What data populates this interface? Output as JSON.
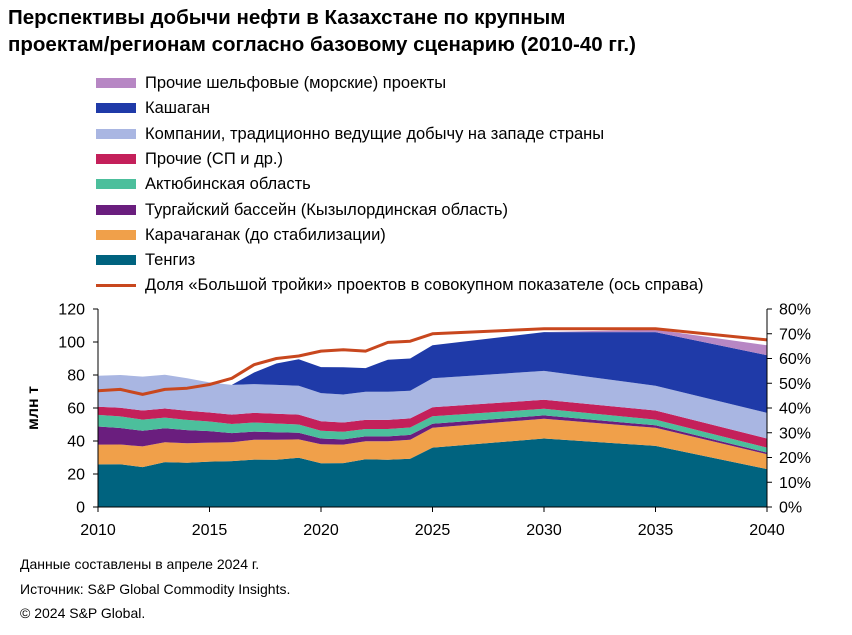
{
  "chart_data": {
    "type": "area",
    "title_lines": [
      "Перспективы добычи нефти в Казахстане по крупным",
      "проектам/регионам согласно базовому сценарию (2010-40 гг.)"
    ],
    "xlabel": "",
    "ylabel": "млн т",
    "ylabel_right": "",
    "x": [
      2010,
      2011,
      2012,
      2013,
      2014,
      2015,
      2016,
      2017,
      2018,
      2019,
      2020,
      2021,
      2022,
      2023,
      2024,
      2025,
      2030,
      2035,
      2040
    ],
    "xticks": [
      "2010",
      "2015",
      "2020",
      "2025",
      "2030",
      "2035",
      "2040"
    ],
    "xlim": [
      2010,
      2040
    ],
    "ylim": [
      0,
      120
    ],
    "yticks": [
      "0",
      "20",
      "40",
      "60",
      "80",
      "100",
      "120"
    ],
    "ylim_right": [
      0,
      80
    ],
    "yticks_right": [
      "0%",
      "10%",
      "20%",
      "30%",
      "40%",
      "50%",
      "60%",
      "70%",
      "80%"
    ],
    "stacking": "stacked",
    "series": [
      {
        "name": "Тенгиз",
        "color": "#00637f",
        "values": [
          25.8,
          25.9,
          24.2,
          27.2,
          26.8,
          27.5,
          27.8,
          28.7,
          28.6,
          29.8,
          26.5,
          26.6,
          28.9,
          28.6,
          29.2,
          36,
          41.5,
          37,
          23
        ]
      },
      {
        "name": "Карачаганак (до стабилизации)",
        "color": "#f0a04a",
        "values": [
          12,
          12,
          12.5,
          12,
          11.8,
          11.5,
          11.5,
          12,
          12.2,
          11.2,
          11.5,
          11.2,
          10.9,
          11.2,
          11.5,
          12,
          12,
          11,
          9
        ]
      },
      {
        "name": "Тургайский бассейн (Кызылординская область)",
        "color": "#6a1e7e",
        "values": [
          11,
          10,
          9.5,
          8.5,
          8,
          7,
          5.5,
          5,
          4.5,
          4,
          3.5,
          3.2,
          3,
          3,
          3,
          2.5,
          2,
          1.5,
          1
        ]
      },
      {
        "name": "Актюбинская область",
        "color": "#4cbf9c",
        "values": [
          7,
          7,
          6.8,
          6.5,
          6.2,
          5.8,
          5.5,
          5.5,
          5.3,
          5,
          4.7,
          4.6,
          4.5,
          4.5,
          4.5,
          4.5,
          4,
          3.5,
          3
        ]
      },
      {
        "name": "Прочие (СП и др.)",
        "color": "#c4205a",
        "values": [
          5,
          5.2,
          5.5,
          5.5,
          5.5,
          5.5,
          5.7,
          5.8,
          5.9,
          6,
          5.8,
          5.6,
          5.5,
          5.5,
          5.5,
          5.5,
          5.5,
          5.5,
          5.5
        ]
      },
      {
        "name": "Компании, традиционно ведущие добычу на западе страны",
        "color": "#a9b6e2",
        "values": [
          18.7,
          19.9,
          20.5,
          20.5,
          19.7,
          18.2,
          18,
          17.5,
          17.5,
          17.5,
          17,
          17,
          17,
          17,
          16.8,
          17.5,
          17.5,
          15,
          15.5
        ]
      },
      {
        "name": "Кашаган",
        "color": "#1f3aa8",
        "values": [
          0,
          0,
          0,
          0,
          0,
          0,
          0,
          7,
          13,
          16,
          15.8,
          16.5,
          14.4,
          19.5,
          19.5,
          20,
          23.5,
          32.5,
          35
        ]
      },
      {
        "name": "Прочие шельфовые (морские) проекты",
        "color": "#b787c4",
        "values": [
          0,
          0,
          0,
          0,
          0,
          0,
          0,
          0,
          0,
          0,
          0,
          0,
          0,
          0,
          0,
          0,
          0,
          1.5,
          6
        ]
      }
    ],
    "line_series": {
      "name": "Доля «Большой тройки» проектов в совокупном показателе (ось справа)",
      "color": "#c8471e",
      "axis": "right",
      "unit": "%",
      "values": [
        47,
        47.5,
        45.5,
        47.5,
        48,
        49.5,
        52,
        57.5,
        60,
        61,
        63,
        63.5,
        63,
        66.5,
        67,
        70,
        72,
        72,
        67.5
      ]
    },
    "legend_position": "top-left"
  },
  "notes": [
    "Данные составлены в апреле 2024 г.",
    "Источник: S&P Global Commodity Insights.",
    "© 2024 S&P Global."
  ]
}
